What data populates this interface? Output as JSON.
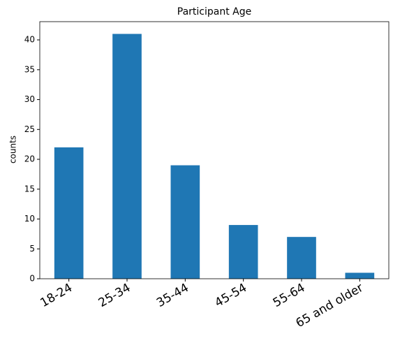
{
  "chart_data": {
    "type": "bar",
    "title": "Participant Age",
    "ylabel": "counts",
    "categories": [
      "18-24",
      "25-34",
      "35-44",
      "45-54",
      "55-64",
      "65 and older"
    ],
    "values": [
      22,
      41,
      19,
      9,
      7,
      1
    ],
    "color": "#1f77b4",
    "ylim": [
      0,
      43.05
    ],
    "yticks": [
      0,
      5,
      10,
      15,
      20,
      25,
      30,
      35,
      40
    ],
    "grid": false
  }
}
